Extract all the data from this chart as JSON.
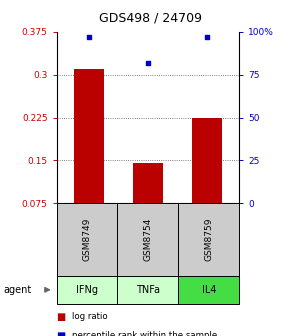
{
  "title": "GDS498 / 24709",
  "samples": [
    "GSM8749",
    "GSM8754",
    "GSM8759"
  ],
  "agents": [
    "IFNg",
    "TNFa",
    "IL4"
  ],
  "log_ratios": [
    0.31,
    0.145,
    0.225
  ],
  "percentile_ranks": [
    97,
    82,
    97
  ],
  "ylim_left": [
    0.075,
    0.375
  ],
  "ylim_right": [
    0,
    100
  ],
  "yticks_left": [
    0.075,
    0.15,
    0.225,
    0.3,
    0.375
  ],
  "ytick_labels_left": [
    "0.075",
    "0.15",
    "0.225",
    "0.3",
    "0.375"
  ],
  "yticks_right": [
    0,
    25,
    50,
    75,
    100
  ],
  "ytick_labels_right": [
    "0",
    "25",
    "50",
    "75",
    "100%"
  ],
  "bar_color": "#bb0000",
  "dot_color": "#0000cc",
  "sample_box_color": "#cccccc",
  "agent_colors": [
    "#ccffcc",
    "#ccffcc",
    "#44dd44"
  ],
  "grid_color": "#555555",
  "title_color": "#000000",
  "left_axis_color": "#cc0000",
  "right_axis_color": "#0000cc",
  "bar_bottom": 0.075,
  "bar_width": 0.5
}
